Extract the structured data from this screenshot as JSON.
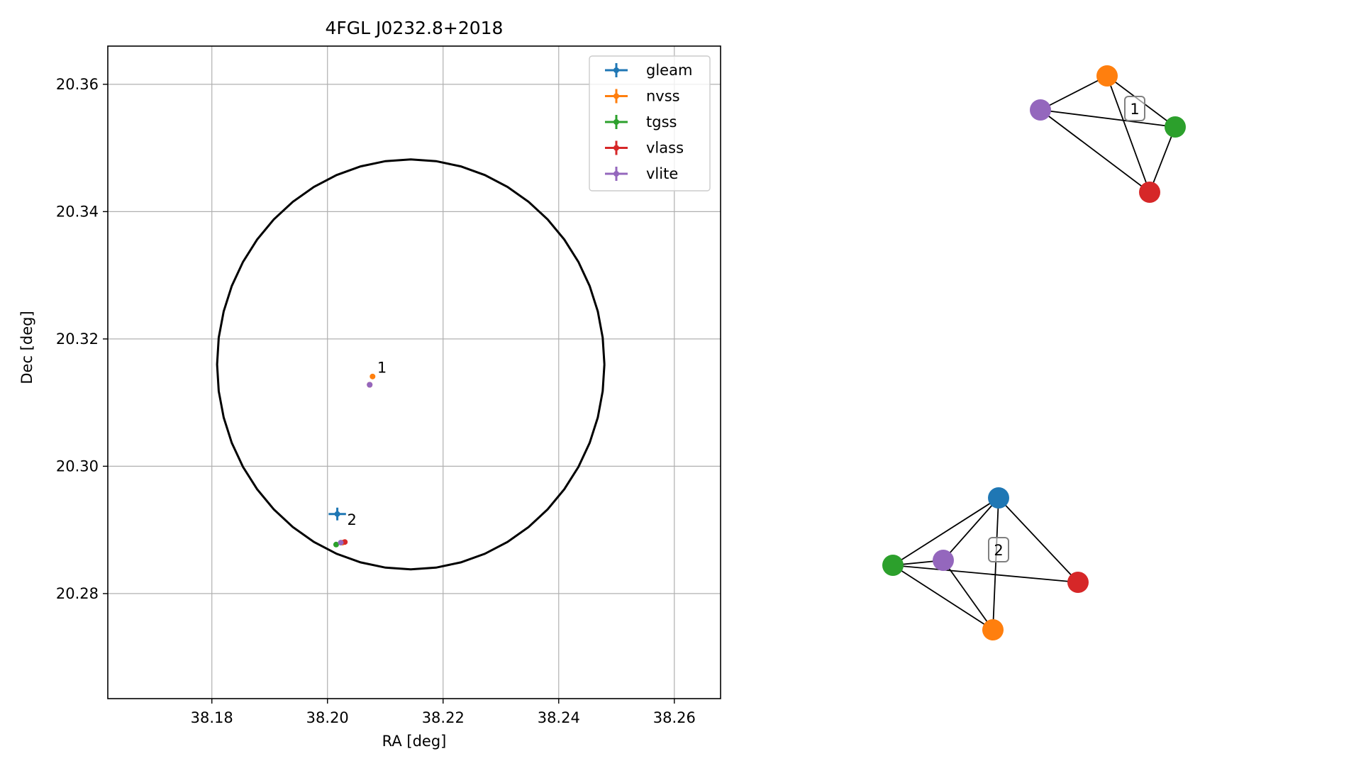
{
  "chart_data": [
    {
      "type": "scatter",
      "title": "4FGL J0232.8+2018",
      "xlabel": "RA [deg]",
      "ylabel": "Dec [deg]",
      "xlim": [
        38.162,
        38.268
      ],
      "ylim": [
        20.2635,
        20.366
      ],
      "xticks": [
        38.18,
        38.2,
        38.22,
        38.24,
        38.26
      ],
      "xtick_labels": [
        "38.18",
        "38.20",
        "38.22",
        "38.24",
        "38.26"
      ],
      "yticks": [
        20.28,
        20.3,
        20.32,
        20.34,
        20.36
      ],
      "ytick_labels": [
        "20.28",
        "20.30",
        "20.32",
        "20.34",
        "20.36"
      ],
      "grid": true,
      "legend_position": "top-right",
      "ellipse": {
        "center": [
          38.2144,
          20.316
        ],
        "semi_axis_ra": 0.0335,
        "semi_axis_dec": 0.0322,
        "color": "#000000"
      },
      "series": [
        {
          "name": "gleam",
          "color": "#1f77b4",
          "points": [
            {
              "x": 38.2017,
              "y": 20.2925,
              "xerr": 0.0015,
              "yerr": 0.001
            }
          ]
        },
        {
          "name": "nvss",
          "color": "#ff7f0e",
          "points": [
            {
              "x": 38.2078,
              "y": 20.3141,
              "xerr": 0.0002,
              "yerr": 0.0004
            },
            {
              "x": 38.2026,
              "y": 20.288,
              "xerr": 0.0002,
              "yerr": 0.0002
            }
          ]
        },
        {
          "name": "tgss",
          "color": "#2ca02c",
          "points": [
            {
              "x": 38.2015,
              "y": 20.2877,
              "xerr": 0.0002,
              "yerr": 0.0002
            }
          ]
        },
        {
          "name": "vlass",
          "color": "#d62728",
          "points": [
            {
              "x": 38.2073,
              "y": 20.3128,
              "xerr": 0.0001,
              "yerr": 0.0001
            },
            {
              "x": 38.203,
              "y": 20.2881,
              "xerr": 0.0002,
              "yerr": 0.0002
            }
          ]
        },
        {
          "name": "vlite",
          "color": "#9467bd",
          "points": [
            {
              "x": 38.2073,
              "y": 20.3128,
              "xerr": 0.0002,
              "yerr": 0.0002
            },
            {
              "x": 38.2023,
              "y": 20.288,
              "xerr": 0.0002,
              "yerr": 0.0002
            }
          ]
        }
      ],
      "annotations": [
        {
          "text": "1",
          "x": 38.2086,
          "y": 20.3147
        },
        {
          "text": "2",
          "x": 38.2034,
          "y": 20.2908
        }
      ]
    },
    {
      "type": "network",
      "groups": [
        {
          "label": "1",
          "nodes": [
            "vlite",
            "nvss",
            "tgss",
            "vlass"
          ],
          "edges": [
            [
              "vlite",
              "nvss"
            ],
            [
              "vlite",
              "tgss"
            ],
            [
              "vlite",
              "vlass"
            ],
            [
              "nvss",
              "tgss"
            ],
            [
              "nvss",
              "vlass"
            ],
            [
              "tgss",
              "vlass"
            ]
          ]
        },
        {
          "label": "2",
          "nodes": [
            "gleam",
            "vlite",
            "tgss",
            "nvss",
            "vlass"
          ],
          "edges": [
            [
              "gleam",
              "vlite"
            ],
            [
              "gleam",
              "tgss"
            ],
            [
              "gleam",
              "nvss"
            ],
            [
              "gleam",
              "vlass"
            ],
            [
              "tgss",
              "vlite"
            ],
            [
              "tgss",
              "nvss"
            ],
            [
              "tgss",
              "vlass"
            ],
            [
              "vlite",
              "nvss"
            ]
          ]
        }
      ]
    }
  ],
  "colors": {
    "gleam": "#1f77b4",
    "nvss": "#ff7f0e",
    "tgss": "#2ca02c",
    "vlass": "#d62728",
    "vlite": "#9467bd"
  }
}
